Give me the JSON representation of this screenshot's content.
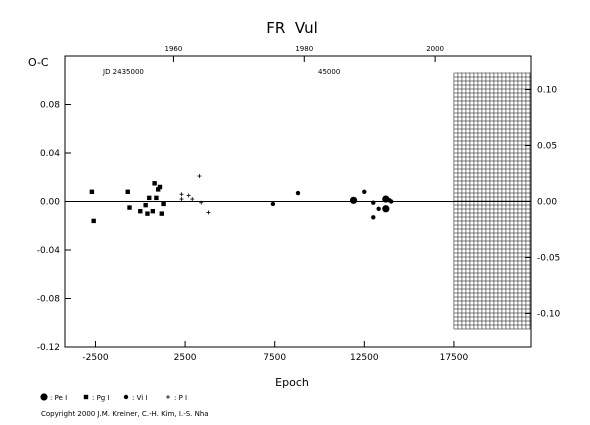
{
  "chart_data": {
    "type": "scatter",
    "title": "FR  Vul",
    "xlabel": "Epoch",
    "ylabel": "O-C",
    "xlim": [
      -4200,
      21800
    ],
    "ylim": [
      -0.12,
      0.12
    ],
    "right_ylim": [
      -0.13,
      0.13
    ],
    "x_ticks": [
      -2500,
      2500,
      7500,
      12500,
      17500
    ],
    "x_tick_labels": [
      "-2500",
      "2500",
      "7500",
      "12500",
      "17500"
    ],
    "y_ticks": [
      -0.12,
      -0.08,
      -0.04,
      0.0,
      0.04,
      0.08
    ],
    "y_tick_labels": [
      "-0.12",
      "-0.08",
      "-0.04",
      "0.00",
      "0.04",
      "0.08"
    ],
    "right_y_ticks": [
      -0.1,
      -0.05,
      0.0,
      0.05,
      0.1
    ],
    "right_y_tick_labels": [
      "-0.10",
      "-0.05",
      "0.00",
      "0.05",
      "0.10"
    ],
    "top_year_ticks": [
      1960,
      1980,
      2000
    ],
    "top_year_labels": [
      "1960",
      "1980",
      "2000"
    ],
    "top_year_epochs": [
      1850,
      9150,
      16450
    ],
    "jd_labels": [
      "JD 2435000",
      "45000"
    ],
    "future_shaded_from": 17500,
    "series": [
      {
        "name": "Pe I",
        "marker": "circle-large",
        "points": [
          [
            11900,
            0.001
          ],
          [
            13700,
            0.002
          ],
          [
            13700,
            -0.006
          ]
        ]
      },
      {
        "name": "Pg I",
        "marker": "square",
        "points": [
          [
            -2700,
            0.008
          ],
          [
            -2600,
            -0.016
          ],
          [
            -700,
            0.008
          ],
          [
            -600,
            -0.005
          ],
          [
            0,
            -0.008
          ],
          [
            300,
            -0.003
          ],
          [
            400,
            -0.01
          ],
          [
            500,
            0.003
          ],
          [
            700,
            -0.008
          ],
          [
            800,
            0.015
          ],
          [
            900,
            0.003
          ],
          [
            1000,
            0.01
          ],
          [
            1100,
            0.012
          ],
          [
            1200,
            -0.01
          ],
          [
            1300,
            -0.002
          ]
        ]
      },
      {
        "name": "Vi I",
        "marker": "circle-small",
        "points": [
          [
            7400,
            -0.002
          ],
          [
            8800,
            0.007
          ],
          [
            12500,
            0.008
          ],
          [
            13000,
            -0.001
          ],
          [
            13000,
            -0.013
          ],
          [
            13300,
            -0.006
          ],
          [
            13900,
            0.001
          ],
          [
            14000,
            0.0
          ]
        ]
      },
      {
        "name": "P I",
        "marker": "plus",
        "points": [
          [
            2300,
            0.006
          ],
          [
            2300,
            0.002
          ],
          [
            2700,
            0.005
          ],
          [
            2900,
            0.002
          ],
          [
            3300,
            0.021
          ],
          [
            3400,
            -0.001
          ],
          [
            3800,
            -0.009
          ]
        ]
      }
    ]
  },
  "legend": {
    "items": [
      {
        "label": ": Pe I",
        "marker": "circle-large"
      },
      {
        "label": ": Pg I",
        "marker": "square"
      },
      {
        "label": ": Vi I",
        "marker": "circle-small"
      },
      {
        "label": ": P I",
        "marker": "plus"
      }
    ]
  },
  "copyright": "Copyright 2000 J.M. Kreiner, C.-H. Kim, I.-S. Nha"
}
